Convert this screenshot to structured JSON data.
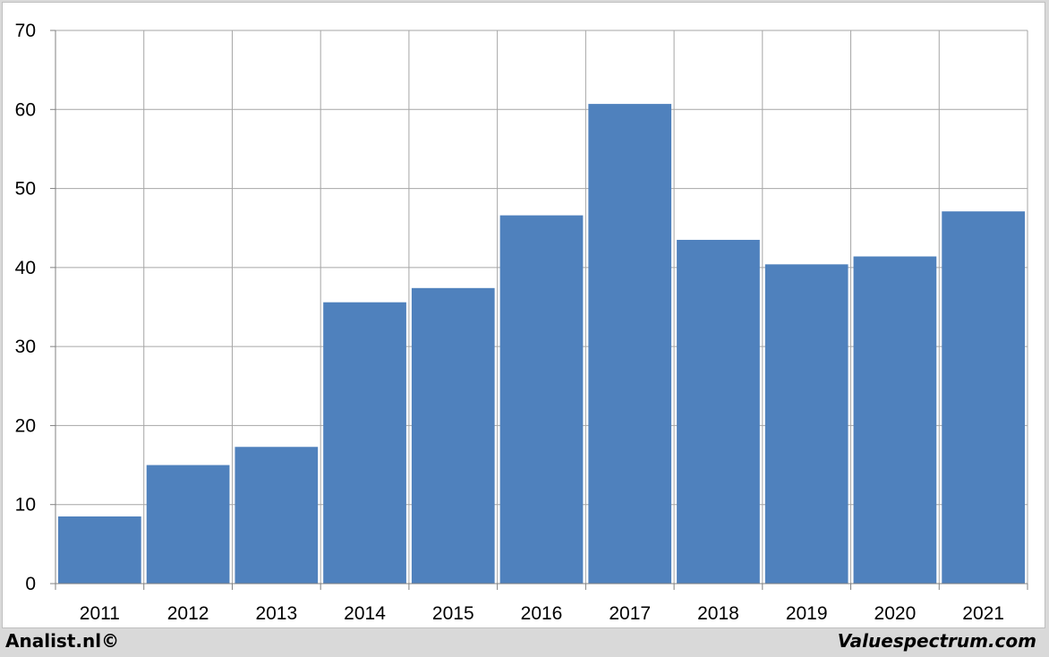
{
  "chart_data": {
    "type": "bar",
    "categories": [
      "2011",
      "2012",
      "2013",
      "2014",
      "2015",
      "2016",
      "2017",
      "2018",
      "2019",
      "2020",
      "2021"
    ],
    "values": [
      8.5,
      15.0,
      17.3,
      35.6,
      37.4,
      46.6,
      60.7,
      43.5,
      40.4,
      41.4,
      47.1
    ],
    "title": "",
    "xlabel": "",
    "ylabel": "",
    "ylim": [
      0,
      70
    ],
    "yticks": [
      0,
      10,
      20,
      30,
      40,
      50,
      60,
      70
    ],
    "grid": true,
    "bar_color": "#4f81bd",
    "grid_color": "#a6a6a6"
  },
  "footer": {
    "left": "Analist.nl©",
    "right": "Valuespectrum.com"
  }
}
